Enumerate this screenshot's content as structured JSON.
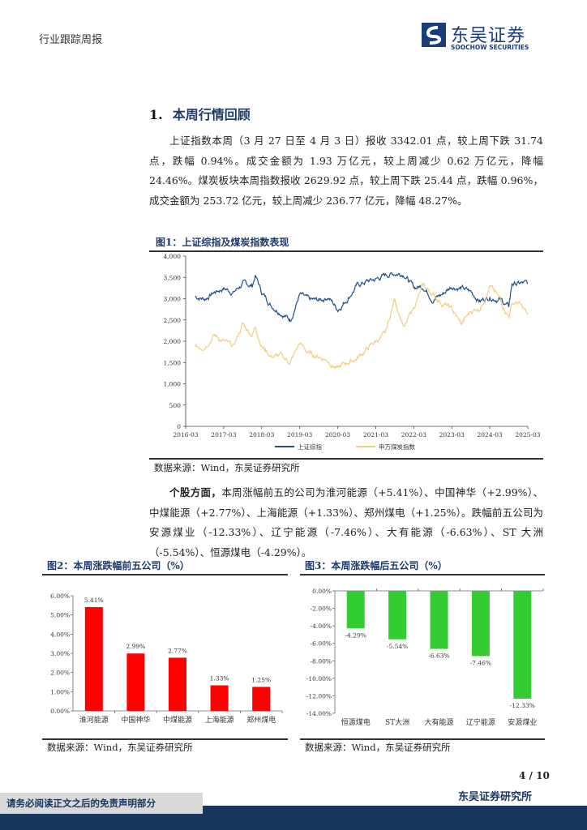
{
  "header": {
    "report_type": "行业跟踪周报",
    "logo_cn": "东吴证券",
    "logo_en": "SOOCHOW SECURITIES",
    "brand_color": "#1a3d7a"
  },
  "section": {
    "number": "1.",
    "title": "本周行情回顾"
  },
  "paragraph1": "上证指数本周（3 月 27 日至 4 月 3 日）报收 3342.01 点，较上周下跌 31.74 点，跌幅 0.94%。成交金额为 1.93 万亿元，较上周减少 0.62 万亿元，降幅 24.46%。煤炭板块本周指数报收 2629.92 点，较上周下跌 25.44 点，跌幅 0.96%，成交金额为 253.72 亿元，较上周减少 236.77 亿元，降幅 48.27%。",
  "paragraph2": {
    "lead": "个股方面，",
    "body": "本周涨幅前五的公司为淮河能源（+5.41%）、中国神华（+2.99%）、中煤能源（+2.77%）、上海能源（+1.33%）、郑州煤电（+1.25%）。跌幅前五公司为安源煤业（-12.33%）、辽宁能源（-7.46%）、大有能源（-6.63%）、ST 大洲（-5.54%）、恒源煤电（-4.29%）。"
  },
  "fig1": {
    "title": "图1：上证综指及煤炭指数表现",
    "source": "数据来源：Wind，东吴证券研究所"
  },
  "fig2": {
    "title": "图2：本周涨跌幅前五公司（%）",
    "source": "数据来源：Wind，东吴证券研究所"
  },
  "fig3": {
    "title": "图3：本周涨跌幅后五公司（%）",
    "source": "数据来源：Wind，东吴证券研究所"
  },
  "chart_data": [
    {
      "type": "line",
      "ylim": [
        0,
        4000
      ],
      "yticks": [
        "0",
        "500",
        "1,000",
        "1,500",
        "2,000",
        "2,500",
        "3,000",
        "3,500",
        "4,000"
      ],
      "xticks": [
        "2016-03",
        "2017-03",
        "2018-03",
        "2019-03",
        "2020-03",
        "2021-03",
        "2022-03",
        "2023-03",
        "2024-03",
        "2025-03"
      ],
      "legend": "bottom",
      "x": [
        "2016-06",
        "2016-09",
        "2016-12",
        "2017-03",
        "2017-06",
        "2017-09",
        "2017-12",
        "2018-01",
        "2018-03",
        "2018-06",
        "2018-09",
        "2018-12",
        "2019-03",
        "2019-06",
        "2019-09",
        "2019-12",
        "2020-03",
        "2020-06",
        "2020-09",
        "2020-12",
        "2021-03",
        "2021-06",
        "2021-09",
        "2021-12",
        "2022-03",
        "2022-06",
        "2022-09",
        "2022-12",
        "2023-03",
        "2023-06",
        "2023-09",
        "2023-12",
        "2024-03",
        "2024-06",
        "2024-09",
        "2024-10",
        "2024-12",
        "2025-03"
      ],
      "series": [
        {
          "name": "上证综指",
          "color": "#1f4e89",
          "values": [
            3050,
            3000,
            3150,
            3250,
            3150,
            3350,
            3300,
            3550,
            3150,
            2850,
            2700,
            2500,
            3100,
            2950,
            2950,
            3050,
            2750,
            3000,
            3300,
            3400,
            3450,
            3550,
            3600,
            3600,
            3250,
            3300,
            3000,
            3100,
            3300,
            3250,
            3150,
            2950,
            3050,
            3000,
            2800,
            3350,
            3350,
            3350
          ]
        },
        {
          "name": "申万煤炭指数",
          "color": "#f0cf7e",
          "values": [
            1850,
            1900,
            2150,
            2000,
            1850,
            2400,
            2150,
            2350,
            1900,
            1650,
            1650,
            1500,
            1950,
            1700,
            1650,
            1550,
            1350,
            1500,
            1600,
            1800,
            2000,
            2150,
            3000,
            2300,
            2800,
            3300,
            3100,
            2900,
            2750,
            2400,
            2700,
            2800,
            3300,
            3000,
            2600,
            2900,
            2900,
            2620
          ]
        }
      ]
    },
    {
      "type": "bar",
      "color": "#ff0000",
      "categories": [
        "淮河能源",
        "中国神华",
        "中煤能源",
        "上海能源",
        "郑州煤电"
      ],
      "values": [
        5.41,
        2.99,
        2.77,
        1.33,
        1.25
      ],
      "labels": [
        "5.41%",
        "2.99%",
        "2.77%",
        "1.33%",
        "1.25%"
      ],
      "ylim": [
        0,
        6
      ],
      "yticks": [
        "0.00%",
        "1.00%",
        "2.00%",
        "3.00%",
        "4.00%",
        "5.00%",
        "6.00%"
      ]
    },
    {
      "type": "bar",
      "color": "#33cc33",
      "categories": [
        "恒源煤电",
        "ST大洲",
        "大有能源",
        "辽宁能源",
        "安源煤业"
      ],
      "values": [
        -4.29,
        -5.54,
        -6.63,
        -7.46,
        -12.33
      ],
      "labels": [
        "-4.29%",
        "-5.54%",
        "-6.63%",
        "-7.46%",
        "-12.33%"
      ],
      "ylim": [
        -14,
        0
      ],
      "yticks": [
        "0.00%",
        "-2.00%",
        "-4.00%",
        "-6.00%",
        "-8.00%",
        "-10.00%",
        "-12.00%",
        "-14.00%"
      ]
    }
  ],
  "footer": {
    "page": "4 / 10",
    "org": "东吴证券研究所",
    "disclaimer": "请务必阅读正文之后的免责声明部分",
    "bar_color": "#17375e"
  }
}
